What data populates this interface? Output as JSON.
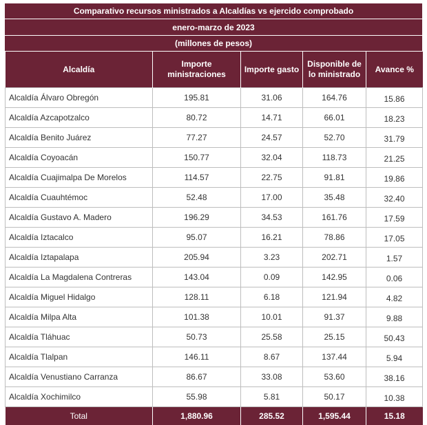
{
  "title": "Comparativo recursos ministrados a Alcaldías vs ejercido comprobado",
  "period": "enero-marzo de 2023",
  "units": "(millones de pesos)",
  "headers": {
    "alcaldia": "Alcaldía",
    "importe_ministraciones": "Importe ministraciones",
    "importe_gasto": "Importe gasto",
    "disponible": "Disponible de lo ministrado",
    "avance": "Avance %"
  },
  "rows": [
    {
      "name": "Alcaldía Álvaro Obregón",
      "ministraciones": "195.81",
      "gasto": "31.06",
      "disponible": "164.76",
      "avance": "15.86"
    },
    {
      "name": "Alcaldía Azcapotzalco",
      "ministraciones": "80.72",
      "gasto": "14.71",
      "disponible": "66.01",
      "avance": "18.23"
    },
    {
      "name": "Alcaldía Benito Juárez",
      "ministraciones": "77.27",
      "gasto": "24.57",
      "disponible": "52.70",
      "avance": "31.79"
    },
    {
      "name": "Alcaldía Coyoacán",
      "ministraciones": "150.77",
      "gasto": "32.04",
      "disponible": "118.73",
      "avance": "21.25"
    },
    {
      "name": "Alcaldía Cuajimalpa De Morelos",
      "ministraciones": "114.57",
      "gasto": "22.75",
      "disponible": "91.81",
      "avance": "19.86"
    },
    {
      "name": "Alcaldía Cuauhtémoc",
      "ministraciones": "52.48",
      "gasto": "17.00",
      "disponible": "35.48",
      "avance": "32.40"
    },
    {
      "name": "Alcaldía Gustavo A. Madero",
      "ministraciones": "196.29",
      "gasto": "34.53",
      "disponible": "161.76",
      "avance": "17.59"
    },
    {
      "name": "Alcaldía Iztacalco",
      "ministraciones": "95.07",
      "gasto": "16.21",
      "disponible": "78.86",
      "avance": "17.05"
    },
    {
      "name": "Alcaldía Iztapalapa",
      "ministraciones": "205.94",
      "gasto": "3.23",
      "disponible": "202.71",
      "avance": "1.57"
    },
    {
      "name": "Alcaldía La Magdalena Contreras",
      "ministraciones": "143.04",
      "gasto": "0.09",
      "disponible": "142.95",
      "avance": "0.06"
    },
    {
      "name": "Alcaldía Miguel Hidalgo",
      "ministraciones": "128.11",
      "gasto": "6.18",
      "disponible": "121.94",
      "avance": "4.82"
    },
    {
      "name": "Alcaldía Milpa Alta",
      "ministraciones": "101.38",
      "gasto": "10.01",
      "disponible": "91.37",
      "avance": "9.88"
    },
    {
      "name": "Alcaldía Tláhuac",
      "ministraciones": "50.73",
      "gasto": "25.58",
      "disponible": "25.15",
      "avance": "50.43"
    },
    {
      "name": "Alcaldía Tlalpan",
      "ministraciones": "146.11",
      "gasto": "8.67",
      "disponible": "137.44",
      "avance": "5.94"
    },
    {
      "name": "Alcaldía Venustiano Carranza",
      "ministraciones": "86.67",
      "gasto": "33.08",
      "disponible": "53.60",
      "avance": "38.16"
    },
    {
      "name": "Alcaldía Xochimilco",
      "ministraciones": "55.98",
      "gasto": "5.81",
      "disponible": "50.17",
      "avance": "10.38"
    }
  ],
  "total": {
    "label": "Total",
    "ministraciones": "1,880.96",
    "gasto": "285.52",
    "disponible": "1,595.44",
    "avance": "15.18"
  },
  "colors": {
    "header_bg": "#6b2336",
    "header_text": "#ffffff",
    "grid": "#bdbdbd"
  }
}
